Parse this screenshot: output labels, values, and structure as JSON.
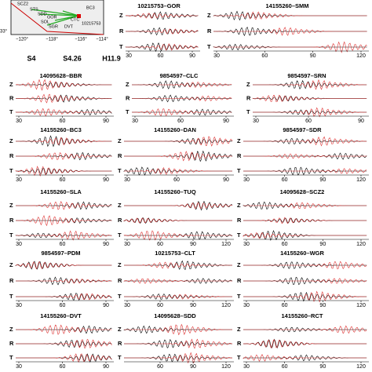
{
  "map": {
    "stations": [
      "SCZ2",
      "STS",
      "SDD",
      "GOR",
      "SOL",
      "SGR",
      "DVT",
      "CTC",
      "BC3",
      "10215753"
    ],
    "lat": "33°",
    "lons": [
      "−120°",
      "−118°",
      "−116°",
      "−114°"
    ]
  },
  "header": [
    "S4",
    "S4.26",
    "H11.9"
  ],
  "components": [
    "Z",
    "R",
    "T"
  ],
  "panels": [
    {
      "title": "10215753–GOR",
      "xticks": [
        30,
        60,
        90
      ]
    },
    {
      "title": "14155260–SMM",
      "xticks": [
        30,
        60,
        90,
        120
      ]
    },
    {
      "title": "14095628–BBR",
      "xticks": [
        30,
        60,
        90
      ]
    },
    {
      "title": "9854597–CLC",
      "xticks": [
        30,
        60,
        90
      ]
    },
    {
      "title": "9854597–SRN",
      "xticks": [
        30,
        60,
        90
      ]
    },
    {
      "title": "14155260–BC3",
      "xticks": [
        30,
        60,
        90
      ]
    },
    {
      "title": "14155260–DAN",
      "xticks": [
        30,
        60,
        90
      ]
    },
    {
      "title": "9854597–SDR",
      "xticks": [
        30,
        60,
        90,
        120
      ]
    },
    {
      "title": "14155260–SLA",
      "xticks": [
        30,
        60,
        90
      ]
    },
    {
      "title": "14155260–TUQ",
      "xticks": [
        30,
        60,
        90,
        120
      ]
    },
    {
      "title": "14095628–SCZ2",
      "xticks": [
        30,
        60,
        90,
        120
      ]
    },
    {
      "title": "9854597–PDM",
      "xticks": [
        30,
        60,
        90
      ]
    },
    {
      "title": "10215753–CLT",
      "xticks": [
        30,
        60,
        90,
        120
      ]
    },
    {
      "title": "14155260–WGR",
      "xticks": [
        30,
        60,
        90,
        120
      ]
    },
    {
      "title": "14155260–DVT",
      "xticks": [
        30,
        60,
        90
      ]
    },
    {
      "title": "14095628–SDD",
      "xticks": [
        60,
        90,
        120
      ]
    },
    {
      "title": "14155260–RCT",
      "xticks": [
        30,
        60,
        90,
        120
      ]
    }
  ]
}
